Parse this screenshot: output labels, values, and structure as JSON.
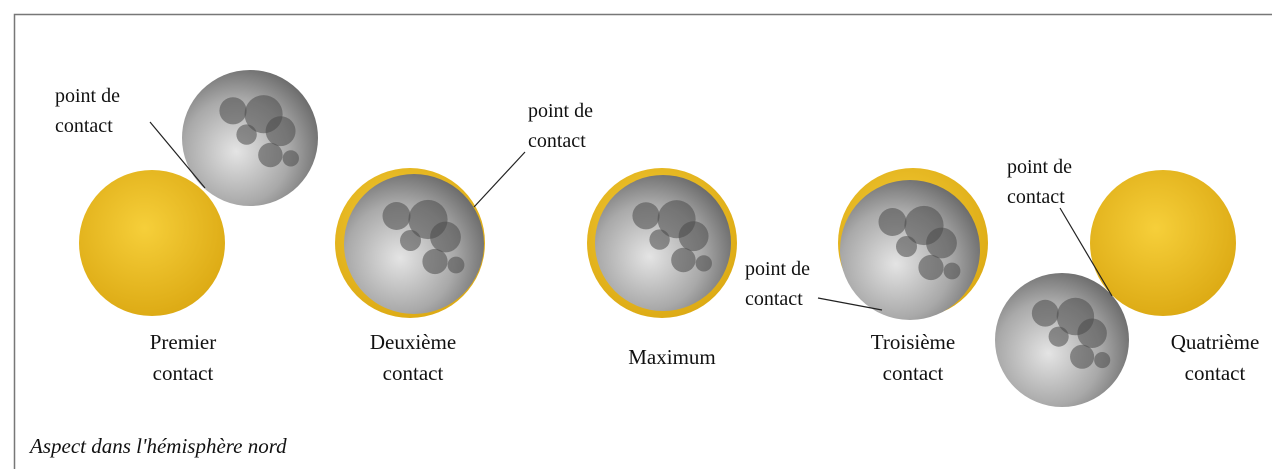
{
  "stages": [
    {
      "label": [
        "Premier",
        "contact"
      ]
    },
    {
      "label": [
        "Deuxième",
        "contact"
      ]
    },
    {
      "label": [
        "Maximum"
      ]
    },
    {
      "label": [
        "Troisième",
        "contact"
      ]
    },
    {
      "label": [
        "Quatrième",
        "contact"
      ]
    }
  ],
  "annotations": [
    {
      "text": [
        "point de",
        "contact"
      ]
    },
    {
      "text": [
        "point de",
        "contact"
      ]
    },
    {
      "text": [
        "point de",
        "contact"
      ]
    },
    {
      "text": [
        "point de",
        "contact"
      ]
    }
  ],
  "caption": "Aspect dans l'hémisphère nord"
}
